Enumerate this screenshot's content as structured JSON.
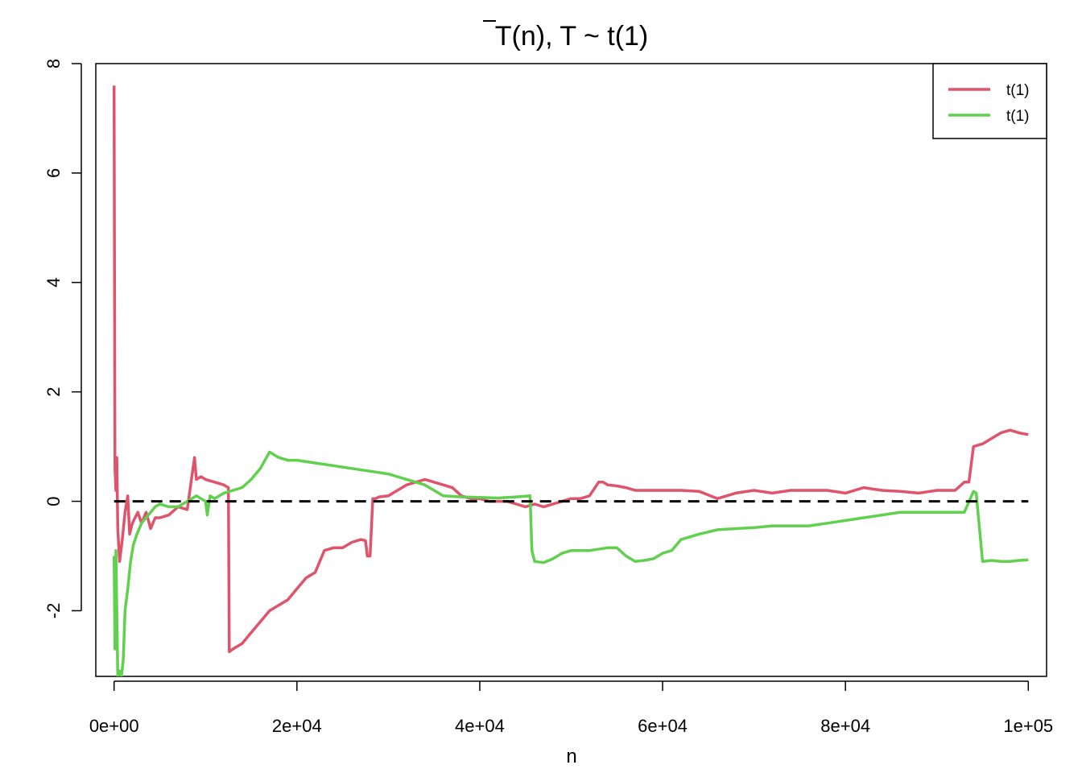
{
  "chart_data": {
    "type": "line",
    "title": "T(n), T ~ t(1)",
    "title_parts": {
      "symbol": "T",
      "rest": "(n), T ~ t(1)"
    },
    "xlabel": "n",
    "ylabel": "",
    "xlim": [
      -2000,
      102000
    ],
    "ylim": [
      -3.2,
      8.0
    ],
    "x_ticks": [
      0,
      20000,
      40000,
      60000,
      80000,
      100000
    ],
    "x_tick_labels": [
      "0e+00",
      "2e+04",
      "4e+04",
      "6e+04",
      "8e+04",
      "1e+05"
    ],
    "y_ticks": [
      -2,
      0,
      2,
      4,
      6,
      8
    ],
    "y_tick_labels": [
      "-2",
      "0",
      "2",
      "4",
      "6",
      "8"
    ],
    "grid": false,
    "legend_position": "top-right",
    "reference_line": {
      "y": 0,
      "style": "dashed",
      "color": "#000000"
    },
    "series": [
      {
        "name": "t(1)",
        "color": "#DF536B",
        "x": [
          0,
          100,
          200,
          300,
          400,
          600,
          900,
          1200,
          1500,
          1700,
          2000,
          2300,
          2600,
          3000,
          3500,
          4000,
          4500,
          5000,
          6000,
          7000,
          8000,
          8800,
          9000,
          9500,
          10000,
          11000,
          12000,
          12500,
          12600,
          13000,
          14000,
          15000,
          16000,
          17000,
          18000,
          19000,
          20000,
          21000,
          22000,
          23000,
          24000,
          25000,
          26000,
          27000,
          27500,
          27700,
          28000,
          28300,
          28600,
          29000,
          30000,
          31000,
          32000,
          33000,
          34000,
          35000,
          36000,
          37000,
          38000,
          39000,
          40000,
          41000,
          42000,
          43000,
          44000,
          45000,
          46000,
          47000,
          48000,
          49000,
          50000,
          51000,
          52000,
          53000,
          53500,
          54000,
          55000,
          56000,
          57000,
          58000,
          59000,
          60000,
          62000,
          64000,
          66000,
          67000,
          68000,
          70000,
          72000,
          74000,
          76000,
          78000,
          80000,
          82000,
          84000,
          86000,
          88000,
          90000,
          92000,
          93000,
          93500,
          94000,
          95000,
          96000,
          97000,
          98000,
          99000,
          100000
        ],
        "values": [
          7.6,
          0.6,
          0.2,
          0.8,
          -0.5,
          -1.1,
          -0.7,
          -0.2,
          0.1,
          -0.6,
          -0.4,
          -0.3,
          -0.2,
          -0.4,
          -0.2,
          -0.5,
          -0.3,
          -0.3,
          -0.25,
          -0.1,
          -0.15,
          0.8,
          0.4,
          0.45,
          0.4,
          0.35,
          0.3,
          0.25,
          -2.75,
          -2.7,
          -2.6,
          -2.4,
          -2.2,
          -2.0,
          -1.9,
          -1.8,
          -1.6,
          -1.4,
          -1.3,
          -0.9,
          -0.85,
          -0.85,
          -0.75,
          -0.7,
          -0.72,
          -1.0,
          -1.0,
          0.05,
          0.05,
          0.08,
          0.1,
          0.2,
          0.3,
          0.35,
          0.4,
          0.35,
          0.3,
          0.25,
          0.1,
          0.05,
          0.05,
          0.0,
          0.0,
          0.0,
          -0.05,
          -0.1,
          -0.05,
          -0.1,
          -0.05,
          0.0,
          0.05,
          0.05,
          0.1,
          0.35,
          0.35,
          0.3,
          0.28,
          0.25,
          0.2,
          0.2,
          0.2,
          0.2,
          0.2,
          0.18,
          0.05,
          0.1,
          0.15,
          0.2,
          0.15,
          0.2,
          0.2,
          0.2,
          0.15,
          0.25,
          0.2,
          0.18,
          0.15,
          0.2,
          0.2,
          0.35,
          0.35,
          1.0,
          1.05,
          1.15,
          1.25,
          1.3,
          1.25,
          1.22
        ]
      },
      {
        "name": "t(1)",
        "color": "#61D04F",
        "x": [
          0,
          100,
          200,
          400,
          600,
          800,
          1000,
          1200,
          1500,
          1800,
          2100,
          2500,
          3000,
          3500,
          4000,
          4500,
          5000,
          6000,
          7000,
          8000,
          9000,
          10000,
          10200,
          10500,
          11000,
          12000,
          13000,
          14000,
          15000,
          16000,
          17000,
          18000,
          19000,
          20000,
          22000,
          24000,
          26000,
          28000,
          30000,
          31000,
          32000,
          33000,
          34000,
          35000,
          36000,
          38000,
          40000,
          42000,
          44000,
          45500,
          45700,
          46000,
          47000,
          48000,
          49000,
          50000,
          52000,
          54000,
          55000,
          56000,
          57000,
          58000,
          59000,
          60000,
          61000,
          62000,
          64000,
          66000,
          68000,
          70000,
          72000,
          74000,
          76000,
          78000,
          80000,
          82000,
          84000,
          86000,
          88000,
          90000,
          92000,
          93000,
          94000,
          94300,
          95000,
          96000,
          97000,
          98000,
          99000,
          100000
        ],
        "values": [
          -1.0,
          -2.7,
          -0.9,
          -3.2,
          -3.1,
          -3.2,
          -2.9,
          -2.0,
          -1.6,
          -1.1,
          -0.8,
          -0.6,
          -0.4,
          -0.3,
          -0.2,
          -0.1,
          -0.05,
          -0.1,
          -0.1,
          0.0,
          0.1,
          0.0,
          -0.25,
          0.1,
          0.05,
          0.15,
          0.2,
          0.25,
          0.4,
          0.6,
          0.9,
          0.8,
          0.75,
          0.75,
          0.7,
          0.65,
          0.6,
          0.55,
          0.5,
          0.45,
          0.4,
          0.35,
          0.3,
          0.2,
          0.1,
          0.08,
          0.07,
          0.06,
          0.08,
          0.1,
          -0.9,
          -1.1,
          -1.12,
          -1.05,
          -0.95,
          -0.9,
          -0.9,
          -0.85,
          -0.85,
          -1.0,
          -1.1,
          -1.08,
          -1.05,
          -0.95,
          -0.9,
          -0.7,
          -0.6,
          -0.52,
          -0.5,
          -0.48,
          -0.45,
          -0.45,
          -0.45,
          -0.4,
          -0.35,
          -0.3,
          -0.25,
          -0.2,
          -0.2,
          -0.2,
          -0.2,
          -0.2,
          0.18,
          0.15,
          -1.1,
          -1.08,
          -1.1,
          -1.1,
          -1.08,
          -1.07
        ]
      }
    ]
  }
}
